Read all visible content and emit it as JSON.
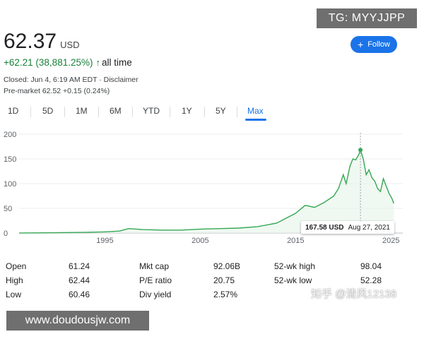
{
  "watermark_tg": "TG: MYYJJPP",
  "quote": {
    "price": "62.37",
    "currency": "USD",
    "change": "+62.21 (38,881.25%)",
    "change_arrow": "↑",
    "period": "all time",
    "closed_text": "Closed: Jun 4, 6:19 AM EDT · Disclaimer",
    "premarket_text": "Pre-market 62.52 +0.15 (0.24%)",
    "positive_color": "#188038"
  },
  "follow_button": {
    "label": "Follow",
    "icon": "plus-icon",
    "color": "#1a73e8"
  },
  "range_tabs": [
    "1D",
    "5D",
    "1M",
    "6M",
    "YTD",
    "1Y",
    "5Y",
    "Max"
  ],
  "active_tab": "Max",
  "tooltip": {
    "value": "167.58 USD",
    "date": "Aug 27, 2021"
  },
  "chart_data": {
    "type": "area",
    "title": "",
    "xlabel": "",
    "ylabel": "",
    "line_color": "#34a853",
    "ylim": [
      0,
      200
    ],
    "xlim": [
      1986,
      2025.5
    ],
    "y_ticks": [
      "0",
      "50",
      "100",
      "150",
      "200"
    ],
    "x_ticks": [
      "1995",
      "2005",
      "2015",
      "2025"
    ],
    "x_tick_values": [
      1995,
      2005,
      2015,
      2025
    ],
    "grid": true,
    "series": [
      {
        "x": [
          1986,
          1990,
          1993,
          1995,
          1996.5,
          1997.5,
          1999,
          2001,
          2003,
          2005,
          2007,
          2009,
          2011,
          2013,
          2014,
          2015,
          2016,
          2017,
          2018,
          2019,
          2019.5,
          2020,
          2020.3,
          2020.7,
          2021.0,
          2021.3,
          2021.6,
          2021.8,
          2022.1,
          2022.4,
          2022.7,
          2023.0,
          2023.3,
          2023.6,
          2023.9,
          2024.2,
          2024.5,
          2024.8,
          2025.1,
          2025.3
        ],
        "y": [
          0.2,
          0.8,
          1.5,
          2.5,
          4,
          9,
          7,
          6,
          6,
          8,
          9,
          10,
          13,
          20,
          30,
          40,
          56,
          52,
          62,
          75,
          90,
          118,
          100,
          135,
          150,
          148,
          158,
          168,
          150,
          118,
          128,
          112,
          105,
          90,
          84,
          110,
          95,
          80,
          70,
          60
        ]
      }
    ]
  },
  "stats": [
    {
      "label": "Open",
      "value": "61.24"
    },
    {
      "label": "High",
      "value": "62.44"
    },
    {
      "label": "Low",
      "value": "60.46"
    },
    {
      "label": "Mkt cap",
      "value": "92.06B"
    },
    {
      "label": "P/E ratio",
      "value": "20.75"
    },
    {
      "label": "Div yield",
      "value": "2.57%"
    },
    {
      "label": "52-wk high",
      "value": "98.04"
    },
    {
      "label": "52-wk low",
      "value": "52.28"
    }
  ],
  "watermark_site": "www.doudousjw.com",
  "watermark_zhihu": "知乎 @清风12138"
}
